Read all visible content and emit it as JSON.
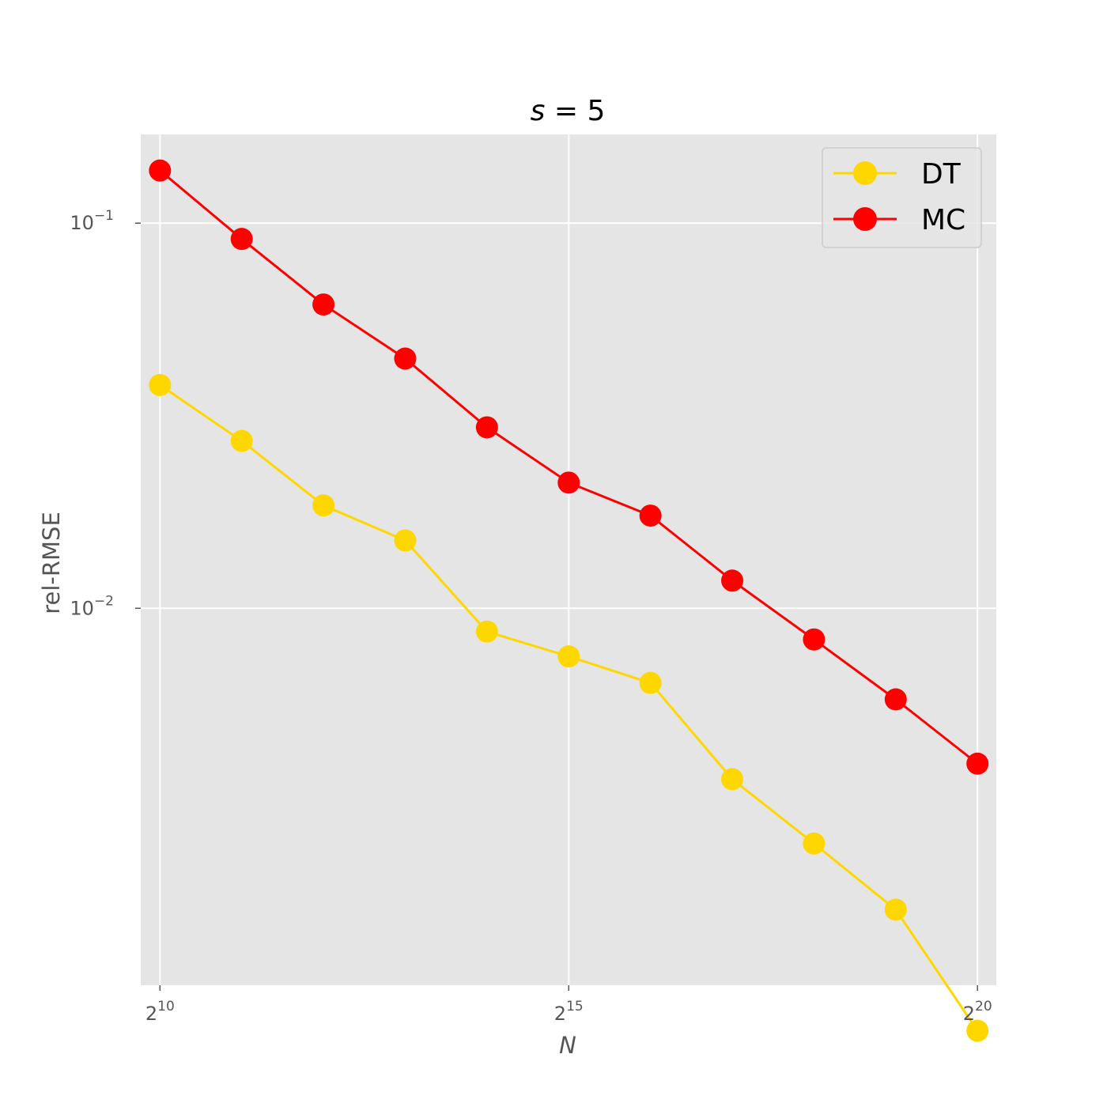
{
  "chart_data": {
    "type": "line",
    "title": {
      "base": "s",
      "rest": " = 5"
    },
    "xlabel": "N",
    "ylabel": "rel-RMSE",
    "x_scale": "log2",
    "y_scale": "log10",
    "x": [
      1024,
      2048,
      4096,
      8192,
      16384,
      32768,
      65536,
      131072,
      262144,
      524288,
      1048576
    ],
    "xlim": [
      870,
      1230000
    ],
    "ylim": [
      0.00105,
      0.17
    ],
    "x_ticks": [
      {
        "value": 1024,
        "base": "2",
        "exp": "10"
      },
      {
        "value": 32768,
        "base": "2",
        "exp": "15"
      },
      {
        "value": 1048576,
        "base": "2",
        "exp": "20"
      }
    ],
    "y_ticks": [
      {
        "value": 0.1,
        "base": "10",
        "exp": "−1"
      },
      {
        "value": 0.01,
        "base": "10",
        "exp": "−2"
      }
    ],
    "grid": true,
    "legend_position": "top-right",
    "series": [
      {
        "name": "DT",
        "color": "#FFD700",
        "values": [
          0.038,
          0.0272,
          0.0185,
          0.015,
          0.0087,
          0.0075,
          0.0064,
          0.0036,
          0.00245,
          0.00165,
          0.0008
        ]
      },
      {
        "name": "MC",
        "color": "#FF0000",
        "values": [
          0.137,
          0.091,
          0.0615,
          0.0445,
          0.0295,
          0.0212,
          0.0174,
          0.0118,
          0.0083,
          0.0058,
          0.00395
        ]
      }
    ]
  }
}
